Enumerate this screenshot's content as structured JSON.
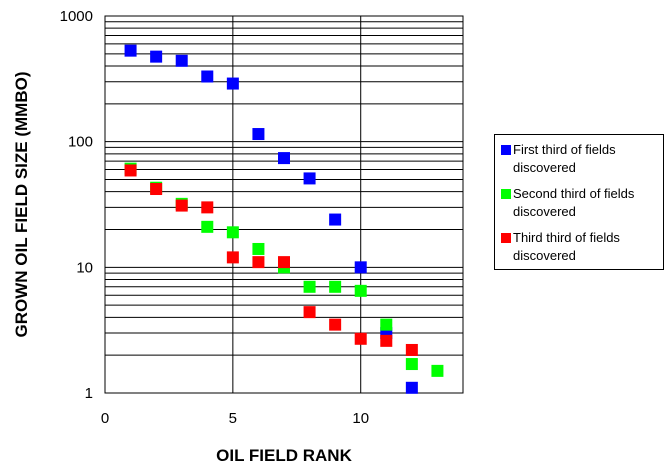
{
  "chart_data": {
    "type": "scatter",
    "xlabel": "OIL FIELD RANK",
    "ylabel": "GROWN OIL FIELD SIZE (MMBO)",
    "xlim": [
      0,
      14
    ],
    "ylim": [
      1,
      1000
    ],
    "yscale": "log",
    "xticks": [
      0,
      5,
      10
    ],
    "yticks": [
      1,
      10,
      100,
      1000
    ],
    "grid": true,
    "legend_position": "right",
    "series": [
      {
        "name": "First third of fields discovered",
        "color": "#0000ff",
        "x": [
          1,
          2,
          3,
          4,
          5,
          6,
          7,
          8,
          9,
          10,
          11,
          12
        ],
        "y": [
          530,
          475,
          440,
          330,
          290,
          115,
          74,
          51,
          24,
          10,
          3.0,
          1.1
        ]
      },
      {
        "name": "Second third of fields discovered",
        "color": "#00ff00",
        "x": [
          1,
          2,
          3,
          4,
          5,
          6,
          7,
          8,
          9,
          10,
          11,
          12,
          13
        ],
        "y": [
          61,
          43,
          32,
          21,
          19,
          14,
          10,
          7,
          7,
          6.5,
          3.5,
          1.7,
          1.5
        ]
      },
      {
        "name": "Third third of fields discovered",
        "color": "#ff0000",
        "x": [
          1,
          2,
          3,
          4,
          5,
          6,
          7,
          8,
          9,
          10,
          11,
          12
        ],
        "y": [
          59,
          42,
          31,
          30,
          12,
          11,
          11,
          4.4,
          3.5,
          2.7,
          2.6,
          2.2
        ]
      }
    ],
    "legend": [
      {
        "label": "First third of fields discovered",
        "color": "#0000ff"
      },
      {
        "label": "Second third of fields discovered",
        "color": "#00ff00"
      },
      {
        "label": "Third third of fields discovered",
        "color": "#ff0000"
      }
    ]
  }
}
